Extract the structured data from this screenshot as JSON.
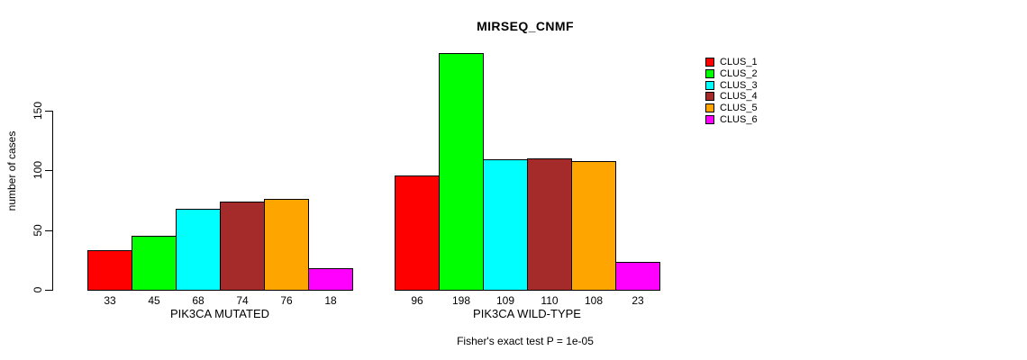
{
  "chart_data": {
    "type": "bar",
    "title": "MIRSEQ_CNMF",
    "ylabel": "number of cases",
    "yticks": [
      0,
      50,
      100,
      150
    ],
    "ylim": [
      0,
      150
    ],
    "grid": false,
    "legend_position": "right",
    "categories": [
      "PIK3CA MUTATED",
      "PIK3CA WILD-TYPE"
    ],
    "series": [
      {
        "name": "CLUS_1",
        "color": "#FF0000",
        "values": [
          33,
          96
        ]
      },
      {
        "name": "CLUS_2",
        "color": "#00FF00",
        "values": [
          45,
          198
        ]
      },
      {
        "name": "CLUS_3",
        "color": "#00FFFF",
        "values": [
          68,
          109
        ]
      },
      {
        "name": "CLUS_4",
        "color": "#A52A2A",
        "values": [
          74,
          110
        ]
      },
      {
        "name": "CLUS_5",
        "color": "#FFA500",
        "values": [
          76,
          108
        ]
      },
      {
        "name": "CLUS_6",
        "color": "#FF00FF",
        "values": [
          18,
          23
        ]
      }
    ],
    "annotation": "Fisher's exact test P = 1e-05"
  }
}
